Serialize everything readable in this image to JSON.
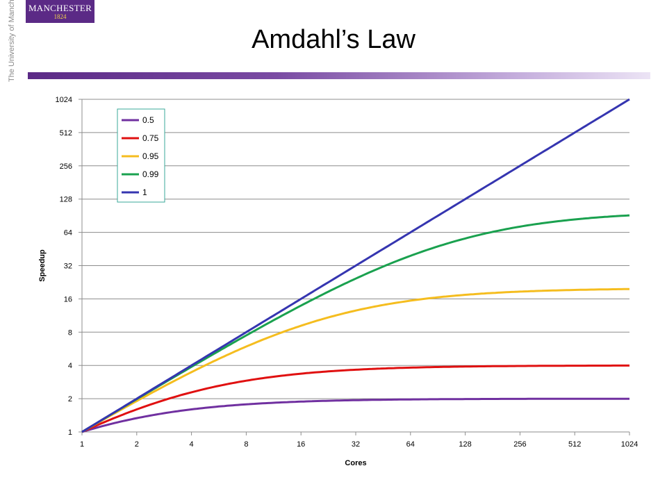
{
  "header": {
    "logo_text": "MANCHESTER",
    "logo_year": "1824",
    "vertical_text": "The University of Manchester",
    "title": "Amdahl’s Law"
  },
  "colors": {
    "brand_purple": "#5b2a86",
    "legend_border": "#3aa89a"
  },
  "chart_data": {
    "type": "line",
    "title": "Amdahl’s Law",
    "xlabel": "Cores",
    "ylabel": "Speedup",
    "x_scale": "log2",
    "y_scale": "log2",
    "xlim": [
      1,
      1024
    ],
    "ylim": [
      1,
      1024
    ],
    "x": [
      1,
      2,
      4,
      8,
      16,
      32,
      64,
      128,
      256,
      512,
      1024
    ],
    "x_tick_labels": [
      "1",
      "2",
      "4",
      "8",
      "16",
      "32",
      "64",
      "128",
      "256",
      "512",
      "1024"
    ],
    "y_tick_labels": [
      "1",
      "2",
      "4",
      "8",
      "16",
      "32",
      "64",
      "128",
      "256",
      "512",
      "1024"
    ],
    "grid": "horizontal",
    "legend_position": "top-left",
    "series": [
      {
        "name": "0.5",
        "parallel_fraction": 0.5,
        "color": "#7030a0",
        "values": [
          1,
          1.33,
          1.6,
          1.78,
          1.88,
          1.94,
          1.97,
          1.98,
          1.99,
          2.0,
          2.0
        ]
      },
      {
        "name": "0.75",
        "parallel_fraction": 0.75,
        "color": "#e01010",
        "values": [
          1,
          1.6,
          2.29,
          2.91,
          3.37,
          3.66,
          3.82,
          3.91,
          3.95,
          3.98,
          3.99
        ]
      },
      {
        "name": "0.95",
        "parallel_fraction": 0.95,
        "color": "#f5bd1f",
        "values": [
          1,
          1.9,
          3.48,
          5.93,
          9.14,
          12.55,
          15.42,
          17.41,
          18.62,
          19.28,
          19.64
        ]
      },
      {
        "name": "0.99",
        "parallel_fraction": 0.99,
        "color": "#1aa14f",
        "values": [
          1,
          1.98,
          3.88,
          7.48,
          13.91,
          24.43,
          39.26,
          56.39,
          72.11,
          83.78,
          91.18
        ]
      },
      {
        "name": "1",
        "parallel_fraction": 1,
        "color": "#3535b0",
        "values": [
          1,
          2,
          4,
          8,
          16,
          32,
          64,
          128,
          256,
          512,
          1024
        ]
      }
    ]
  }
}
